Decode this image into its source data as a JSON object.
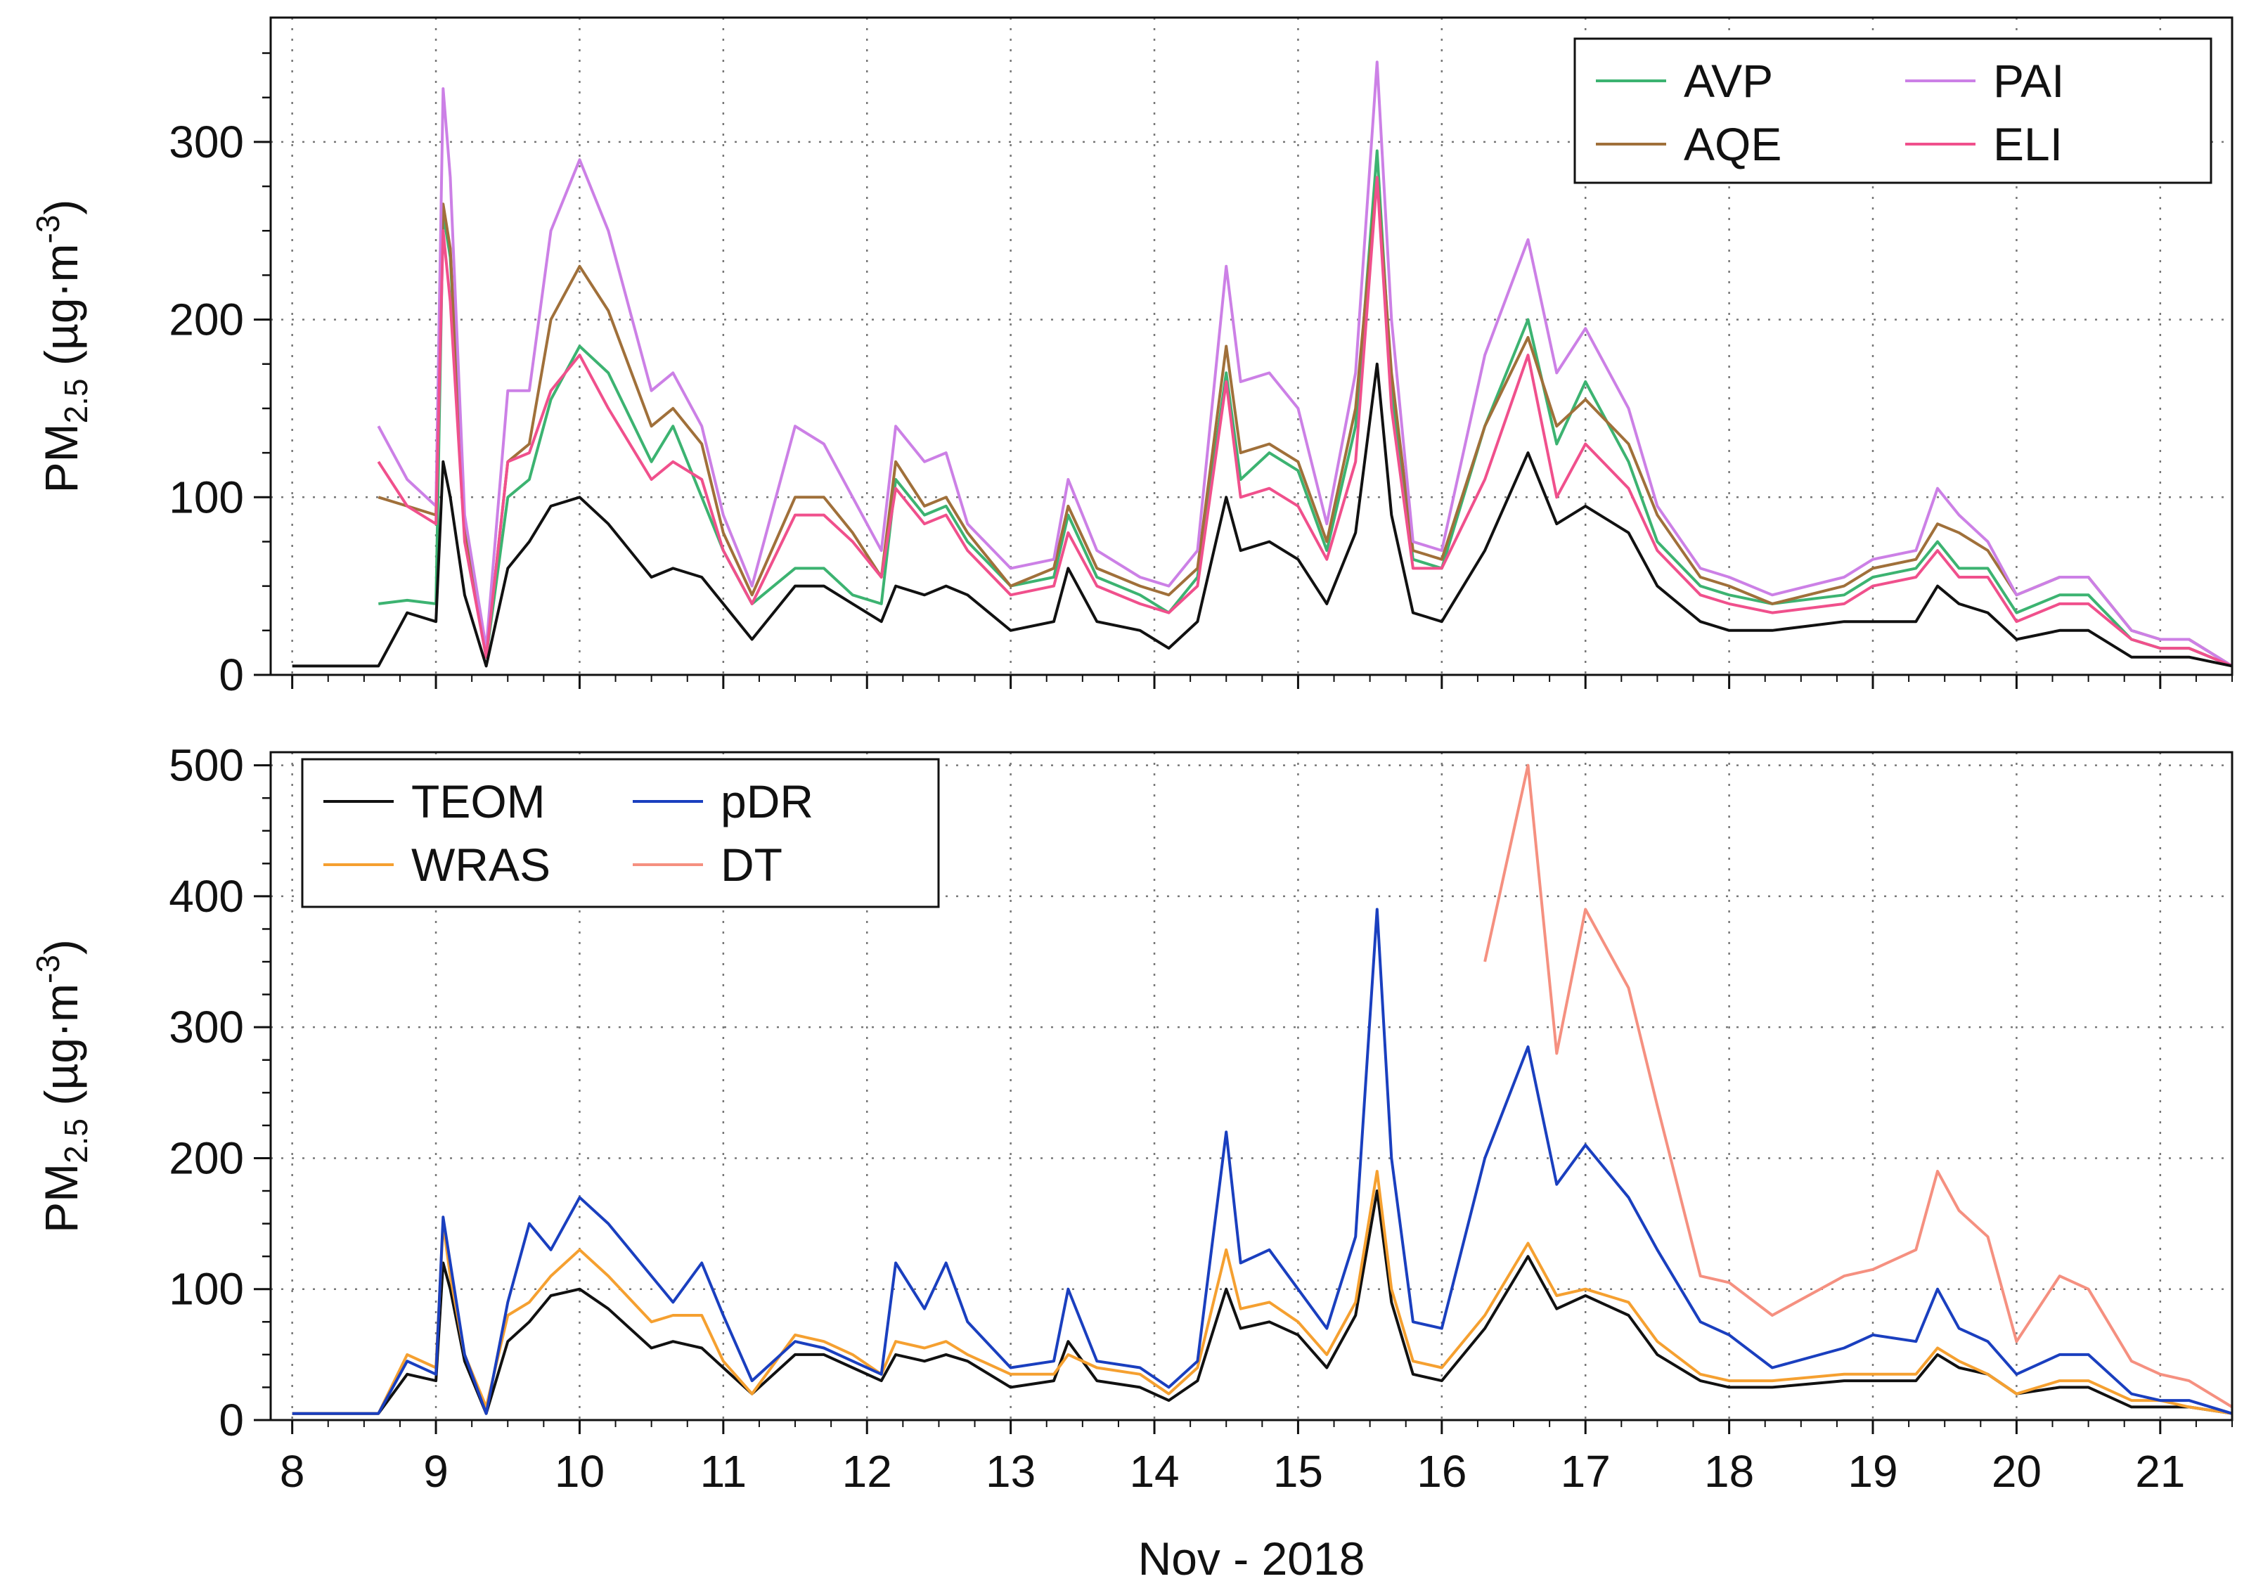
{
  "chart_data": [
    {
      "type": "line",
      "panel": "top",
      "ylabel": "PM2.5 (µg·m-3)",
      "ylabel_parts": {
        "main": "PM",
        "sub": "2.5",
        "unit_open": " (µg·m",
        "sup": "-3",
        "unit_close": ")"
      },
      "ylim": [
        0,
        370
      ],
      "yticks": [
        0,
        100,
        200,
        300
      ],
      "yticks_labels": [
        "0",
        "100",
        "200",
        "300"
      ],
      "xlim": [
        7.85,
        21.5
      ],
      "grid": true,
      "legend_position": "top-right",
      "x": [
        8.0,
        8.5,
        8.6,
        8.8,
        9.0,
        9.05,
        9.1,
        9.2,
        9.35,
        9.5,
        9.65,
        9.8,
        10.0,
        10.2,
        10.5,
        10.65,
        10.85,
        11.0,
        11.2,
        11.5,
        11.7,
        11.9,
        12.1,
        12.2,
        12.4,
        12.55,
        12.7,
        13.0,
        13.3,
        13.4,
        13.6,
        13.9,
        14.1,
        14.3,
        14.5,
        14.6,
        14.8,
        15.0,
        15.2,
        15.4,
        15.55,
        15.65,
        15.8,
        16.0,
        16.3,
        16.6,
        16.8,
        17.0,
        17.3,
        17.5,
        17.8,
        18.0,
        18.3,
        18.8,
        19.0,
        19.3,
        19.45,
        19.6,
        19.8,
        20.0,
        20.3,
        20.5,
        20.8,
        21.0,
        21.2,
        21.5
      ],
      "series": [
        {
          "name": "AVP",
          "color": "#3cb371",
          "values": [
            null,
            null,
            40,
            42,
            40,
            260,
            235,
            80,
            10,
            100,
            110,
            155,
            185,
            170,
            120,
            140,
            100,
            70,
            40,
            60,
            60,
            45,
            40,
            110,
            90,
            95,
            75,
            50,
            55,
            90,
            55,
            45,
            35,
            55,
            170,
            110,
            125,
            115,
            70,
            140,
            295,
            160,
            65,
            60,
            140,
            200,
            130,
            165,
            120,
            75,
            50,
            45,
            40,
            45,
            55,
            60,
            75,
            60,
            60,
            35,
            45,
            45,
            20,
            15,
            15,
            5
          ]
        },
        {
          "name": "AQE",
          "color": "#a0703a",
          "values": [
            null,
            null,
            100,
            95,
            90,
            265,
            240,
            80,
            10,
            120,
            130,
            200,
            230,
            205,
            140,
            150,
            130,
            80,
            45,
            100,
            100,
            80,
            55,
            120,
            95,
            100,
            80,
            50,
            60,
            95,
            60,
            50,
            45,
            60,
            185,
            125,
            130,
            120,
            75,
            150,
            280,
            170,
            70,
            65,
            140,
            190,
            140,
            155,
            130,
            90,
            55,
            50,
            40,
            50,
            60,
            65,
            85,
            80,
            70,
            45,
            55,
            55,
            25,
            20,
            20,
            5
          ]
        },
        {
          "name": "PAI",
          "color": "#cc80e6",
          "values": [
            null,
            null,
            140,
            110,
            95,
            330,
            280,
            90,
            15,
            160,
            160,
            250,
            290,
            250,
            160,
            170,
            140,
            90,
            50,
            140,
            130,
            100,
            70,
            140,
            120,
            125,
            85,
            60,
            65,
            110,
            70,
            55,
            50,
            70,
            230,
            165,
            170,
            150,
            85,
            170,
            345,
            200,
            75,
            70,
            180,
            245,
            170,
            195,
            150,
            95,
            60,
            55,
            45,
            55,
            65,
            70,
            105,
            90,
            75,
            45,
            55,
            55,
            25,
            20,
            20,
            5
          ]
        },
        {
          "name": "ELI",
          "color": "#f0508c",
          "values": [
            null,
            null,
            120,
            95,
            85,
            250,
            210,
            75,
            10,
            120,
            125,
            160,
            180,
            150,
            110,
            120,
            110,
            70,
            40,
            90,
            90,
            75,
            55,
            105,
            85,
            90,
            70,
            45,
            50,
            80,
            50,
            40,
            35,
            50,
            165,
            100,
            105,
            95,
            65,
            120,
            280,
            150,
            60,
            60,
            110,
            180,
            100,
            130,
            105,
            70,
            45,
            40,
            35,
            40,
            50,
            55,
            70,
            55,
            55,
            30,
            40,
            40,
            20,
            15,
            15,
            5
          ]
        },
        {
          "name": "TEOM",
          "color": "#111111",
          "in_legend": false,
          "values": [
            5,
            5,
            5,
            35,
            30,
            120,
            100,
            45,
            5,
            60,
            75,
            95,
            100,
            85,
            55,
            60,
            55,
            40,
            20,
            50,
            50,
            40,
            30,
            50,
            45,
            50,
            45,
            25,
            30,
            60,
            30,
            25,
            15,
            30,
            100,
            70,
            75,
            65,
            40,
            80,
            175,
            90,
            35,
            30,
            70,
            125,
            85,
            95,
            80,
            50,
            30,
            25,
            25,
            30,
            30,
            30,
            50,
            40,
            35,
            20,
            25,
            25,
            10,
            10,
            10,
            5
          ]
        }
      ]
    },
    {
      "type": "line",
      "panel": "bottom",
      "ylabel": "PM2.5 (µg·m-3)",
      "ylabel_parts": {
        "main": "PM",
        "sub": "2.5",
        "unit_open": " (µg·m",
        "sup": "-3",
        "unit_close": ")"
      },
      "ylim": [
        0,
        510
      ],
      "yticks": [
        0,
        100,
        200,
        300,
        400,
        500
      ],
      "yticks_labels": [
        "0",
        "100",
        "200",
        "300",
        "400",
        "500"
      ],
      "xlim": [
        7.85,
        21.5
      ],
      "xticks": [
        8,
        9,
        10,
        11,
        12,
        13,
        14,
        15,
        16,
        17,
        18,
        19,
        20,
        21
      ],
      "xticks_labels": [
        "8",
        "9",
        "10",
        "11",
        "12",
        "13",
        "14",
        "15",
        "16",
        "17",
        "18",
        "19",
        "20",
        "21"
      ],
      "xlabel": "Nov - 2018",
      "grid": true,
      "legend_position": "top-left",
      "x": [
        8.0,
        8.5,
        8.6,
        8.8,
        9.0,
        9.05,
        9.1,
        9.2,
        9.35,
        9.5,
        9.65,
        9.8,
        10.0,
        10.2,
        10.5,
        10.65,
        10.85,
        11.0,
        11.2,
        11.5,
        11.7,
        11.9,
        12.1,
        12.2,
        12.4,
        12.55,
        12.7,
        13.0,
        13.3,
        13.4,
        13.6,
        13.9,
        14.1,
        14.3,
        14.5,
        14.6,
        14.8,
        15.0,
        15.2,
        15.4,
        15.55,
        15.65,
        15.8,
        16.0,
        16.3,
        16.6,
        16.8,
        17.0,
        17.3,
        17.5,
        17.8,
        18.0,
        18.3,
        18.8,
        19.0,
        19.3,
        19.45,
        19.6,
        19.8,
        20.0,
        20.3,
        20.5,
        20.8,
        21.0,
        21.2,
        21.5
      ],
      "series": [
        {
          "name": "TEOM",
          "color": "#111111",
          "values": [
            5,
            5,
            5,
            35,
            30,
            120,
            100,
            45,
            5,
            60,
            75,
            95,
            100,
            85,
            55,
            60,
            55,
            40,
            20,
            50,
            50,
            40,
            30,
            50,
            45,
            50,
            45,
            25,
            30,
            60,
            30,
            25,
            15,
            30,
            100,
            70,
            75,
            65,
            40,
            80,
            175,
            90,
            35,
            30,
            70,
            125,
            85,
            95,
            80,
            50,
            30,
            25,
            25,
            30,
            30,
            30,
            50,
            40,
            35,
            20,
            25,
            25,
            10,
            10,
            10,
            5
          ]
        },
        {
          "name": "WRAS",
          "color": "#f5a030",
          "values": [
            5,
            5,
            5,
            50,
            40,
            150,
            110,
            50,
            10,
            80,
            90,
            110,
            130,
            110,
            75,
            80,
            80,
            45,
            20,
            65,
            60,
            50,
            35,
            60,
            55,
            60,
            50,
            35,
            35,
            50,
            40,
            35,
            20,
            40,
            130,
            85,
            90,
            75,
            50,
            90,
            190,
            100,
            45,
            40,
            80,
            135,
            95,
            100,
            90,
            60,
            35,
            30,
            30,
            35,
            35,
            35,
            55,
            45,
            35,
            20,
            30,
            30,
            15,
            15,
            10,
            5
          ]
        },
        {
          "name": "pDR",
          "color": "#1a3fbf",
          "values": [
            5,
            5,
            5,
            45,
            35,
            155,
            120,
            50,
            5,
            90,
            150,
            130,
            170,
            150,
            110,
            90,
            120,
            80,
            30,
            60,
            55,
            45,
            35,
            120,
            85,
            120,
            75,
            40,
            45,
            100,
            45,
            40,
            25,
            45,
            220,
            120,
            130,
            100,
            70,
            140,
            390,
            200,
            75,
            70,
            200,
            285,
            180,
            210,
            170,
            130,
            75,
            65,
            40,
            55,
            65,
            60,
            100,
            70,
            60,
            35,
            50,
            50,
            20,
            15,
            15,
            5
          ]
        },
        {
          "name": "DT",
          "color": "#f59080",
          "values": [
            null,
            null,
            null,
            null,
            null,
            null,
            null,
            null,
            null,
            null,
            null,
            null,
            null,
            null,
            null,
            null,
            null,
            null,
            null,
            null,
            null,
            null,
            null,
            null,
            null,
            null,
            null,
            null,
            null,
            null,
            null,
            null,
            null,
            null,
            null,
            null,
            null,
            null,
            null,
            null,
            null,
            null,
            null,
            null,
            350,
            500,
            280,
            390,
            330,
            240,
            110,
            105,
            80,
            110,
            115,
            130,
            190,
            160,
            140,
            60,
            110,
            100,
            45,
            35,
            30,
            10
          ]
        }
      ]
    }
  ],
  "legends": {
    "top": [
      {
        "label": "AVP",
        "color": "#3cb371"
      },
      {
        "label": "AQE",
        "color": "#a0703a"
      },
      {
        "label": "PAI",
        "color": "#cc80e6"
      },
      {
        "label": "ELI",
        "color": "#f0508c"
      }
    ],
    "bottom": [
      {
        "label": "TEOM",
        "color": "#111111"
      },
      {
        "label": "WRAS",
        "color": "#f5a030"
      },
      {
        "label": "pDR",
        "color": "#1a3fbf"
      },
      {
        "label": "DT",
        "color": "#f59080"
      }
    ]
  }
}
